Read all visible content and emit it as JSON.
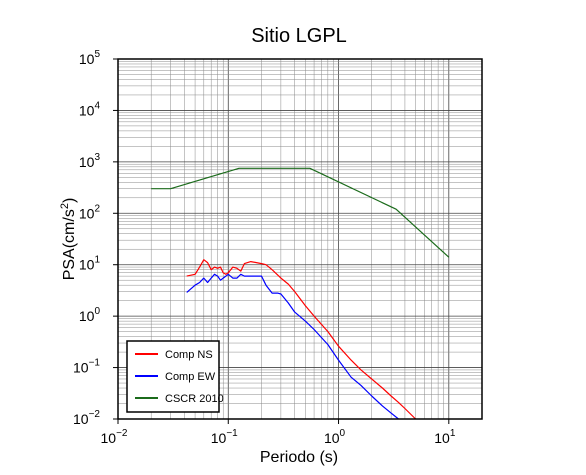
{
  "chart_data": {
    "type": "line",
    "title": "Sitio LGPL",
    "xlabel": "Periodo (s)",
    "ylabel": "PSA(cm/s2)",
    "ylabel_parts": {
      "main": "PSA(cm/s",
      "sup": "2",
      "close": ")"
    },
    "x_scale": "log",
    "y_scale": "log",
    "xlim": [
      0.01,
      20
    ],
    "ylim": [
      0.01,
      100000
    ],
    "grid": true,
    "legend_position": "bottom-left",
    "x_ticks": [
      {
        "base": "10",
        "exp": "−2",
        "value": 0.01
      },
      {
        "base": "10",
        "exp": "−1",
        "value": 0.1
      },
      {
        "base": "10",
        "exp": "0",
        "value": 1
      },
      {
        "base": "10",
        "exp": "1",
        "value": 10
      }
    ],
    "y_ticks": [
      {
        "base": "10",
        "exp": "−2",
        "value": 0.01
      },
      {
        "base": "10",
        "exp": "−1",
        "value": 0.1
      },
      {
        "base": "10",
        "exp": "0",
        "value": 1
      },
      {
        "base": "10",
        "exp": "1",
        "value": 10
      },
      {
        "base": "10",
        "exp": "2",
        "value": 100
      },
      {
        "base": "10",
        "exp": "3",
        "value": 1000
      },
      {
        "base": "10",
        "exp": "4",
        "value": 10000
      },
      {
        "base": "10",
        "exp": "5",
        "value": 100000
      }
    ],
    "series": [
      {
        "name": "Comp NS",
        "color": "#ff0000",
        "x": [
          0.042,
          0.05,
          0.055,
          0.06,
          0.065,
          0.07,
          0.075,
          0.08,
          0.085,
          0.09,
          0.095,
          0.1,
          0.11,
          0.12,
          0.13,
          0.14,
          0.16,
          0.18,
          0.2,
          0.22,
          0.25,
          0.3,
          0.35,
          0.4,
          0.5,
          0.6,
          0.8,
          1.0,
          1.3,
          1.6,
          2.0,
          2.5,
          3.0,
          3.5,
          4.0,
          5.0
        ],
        "y": [
          6.0,
          6.5,
          9.0,
          12.5,
          11.0,
          8.0,
          9.0,
          8.5,
          9.0,
          7.0,
          6.5,
          7.0,
          9.0,
          8.5,
          7.5,
          10.5,
          11.5,
          11.0,
          10.5,
          10.0,
          8.0,
          5.5,
          4.2,
          3.0,
          1.6,
          1.0,
          0.5,
          0.26,
          0.14,
          0.09,
          0.06,
          0.04,
          0.028,
          0.021,
          0.016,
          0.01
        ]
      },
      {
        "name": "Comp EW",
        "color": "#0000ff",
        "x": [
          0.042,
          0.05,
          0.055,
          0.06,
          0.065,
          0.07,
          0.075,
          0.08,
          0.085,
          0.09,
          0.1,
          0.11,
          0.12,
          0.13,
          0.14,
          0.16,
          0.18,
          0.2,
          0.22,
          0.25,
          0.28,
          0.3,
          0.35,
          0.4,
          0.5,
          0.6,
          0.8,
          1.0,
          1.3,
          1.6,
          2.0,
          2.5,
          3.0,
          3.5
        ],
        "y": [
          2.9,
          4.0,
          4.5,
          5.5,
          4.5,
          5.5,
          6.5,
          6.0,
          5.0,
          5.5,
          6.5,
          5.5,
          5.5,
          6.5,
          6.0,
          6.0,
          6.0,
          6.0,
          4.0,
          2.8,
          2.8,
          2.7,
          1.8,
          1.2,
          0.8,
          0.55,
          0.28,
          0.14,
          0.065,
          0.045,
          0.028,
          0.018,
          0.013,
          0.01
        ]
      },
      {
        "name": "CSCR 2010",
        "color": "#1b6b1b",
        "x": [
          0.02,
          0.03,
          0.125,
          0.55,
          3.33,
          10.0
        ],
        "y": [
          300,
          300,
          750,
          750,
          120,
          14
        ]
      }
    ]
  }
}
